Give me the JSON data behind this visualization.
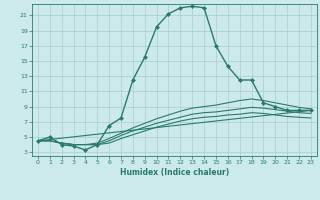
{
  "title": "",
  "xlabel": "Humidex (Indice chaleur)",
  "ylabel": "",
  "bg_color": "#cceaea",
  "grid_color": "#aacccc",
  "line_color": "#2a7a6a",
  "xlim": [
    -0.5,
    23.5
  ],
  "ylim": [
    2.5,
    22.5
  ],
  "yticks": [
    3,
    5,
    7,
    9,
    11,
    13,
    15,
    17,
    19,
    21
  ],
  "xticks": [
    0,
    1,
    2,
    3,
    4,
    5,
    6,
    7,
    8,
    9,
    10,
    11,
    12,
    13,
    14,
    15,
    16,
    17,
    18,
    19,
    20,
    21,
    22,
    23
  ],
  "lines": [
    {
      "x": [
        0,
        1,
        2,
        3,
        4,
        5,
        6,
        7,
        8,
        9,
        10,
        11,
        12,
        13,
        14,
        15,
        16,
        17,
        18,
        19,
        20,
        21,
        22,
        23
      ],
      "y": [
        4.5,
        5.0,
        4.0,
        3.8,
        3.3,
        4.0,
        6.5,
        7.5,
        12.5,
        15.5,
        19.5,
        21.2,
        22.0,
        22.2,
        22.0,
        17.0,
        14.3,
        12.5,
        12.5,
        9.5,
        9.0,
        8.5,
        8.5,
        8.5
      ],
      "marker": "D",
      "markersize": 2.0,
      "linewidth": 1.0
    },
    {
      "x": [
        0,
        23
      ],
      "y": [
        4.5,
        8.5
      ],
      "marker": null,
      "markersize": 0,
      "linewidth": 0.8
    },
    {
      "x": [
        0,
        1,
        2,
        3,
        4,
        5,
        6,
        7,
        8,
        9,
        10,
        11,
        12,
        13,
        14,
        15,
        16,
        17,
        18,
        19,
        20,
        21,
        22,
        23
      ],
      "y": [
        4.5,
        4.5,
        4.2,
        4.0,
        4.0,
        4.2,
        4.8,
        5.5,
        6.2,
        6.8,
        7.4,
        7.9,
        8.4,
        8.8,
        9.0,
        9.2,
        9.5,
        9.8,
        10.0,
        9.8,
        9.5,
        9.2,
        8.9,
        8.7
      ],
      "marker": null,
      "markersize": 0,
      "linewidth": 0.8
    },
    {
      "x": [
        0,
        1,
        2,
        3,
        4,
        5,
        6,
        7,
        8,
        9,
        10,
        11,
        12,
        13,
        14,
        15,
        16,
        17,
        18,
        19,
        20,
        21,
        22,
        23
      ],
      "y": [
        4.5,
        4.5,
        4.2,
        4.0,
        4.0,
        4.0,
        4.5,
        5.2,
        5.8,
        6.3,
        6.8,
        7.2,
        7.6,
        8.0,
        8.2,
        8.3,
        8.5,
        8.7,
        8.9,
        8.8,
        8.6,
        8.4,
        8.2,
        8.1
      ],
      "marker": null,
      "markersize": 0,
      "linewidth": 0.8
    },
    {
      "x": [
        0,
        1,
        2,
        3,
        4,
        5,
        6,
        7,
        8,
        9,
        10,
        11,
        12,
        13,
        14,
        15,
        16,
        17,
        18,
        19,
        20,
        21,
        22,
        23
      ],
      "y": [
        4.5,
        4.5,
        4.2,
        4.0,
        4.0,
        4.0,
        4.2,
        4.8,
        5.3,
        5.8,
        6.3,
        6.7,
        7.1,
        7.4,
        7.6,
        7.7,
        7.9,
        8.0,
        8.2,
        8.1,
        7.9,
        7.7,
        7.6,
        7.5
      ],
      "marker": null,
      "markersize": 0,
      "linewidth": 0.8
    }
  ]
}
